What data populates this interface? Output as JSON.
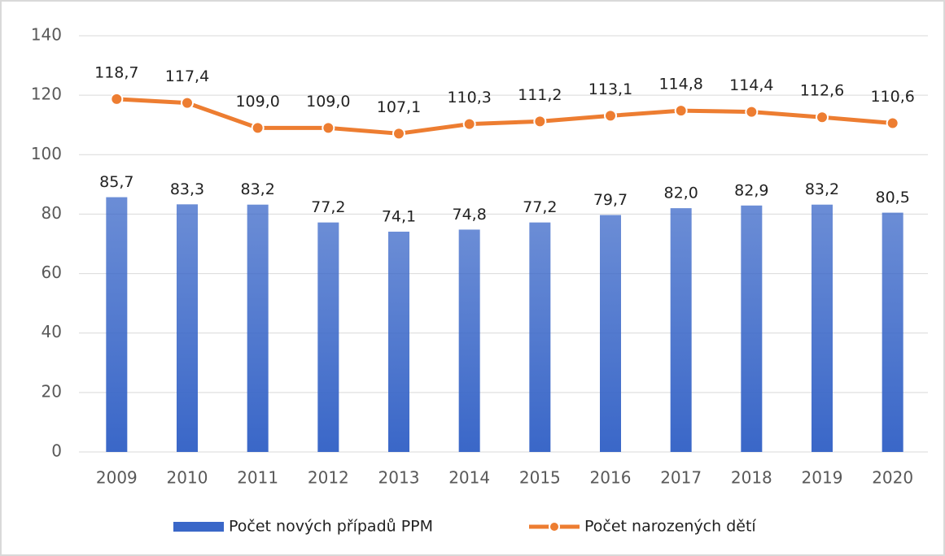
{
  "chart_data": {
    "type": "bar",
    "categories": [
      "2009",
      "2010",
      "2011",
      "2012",
      "2013",
      "2014",
      "2015",
      "2016",
      "2017",
      "2018",
      "2019",
      "2020"
    ],
    "series": [
      {
        "name": "Počet nových případů PPM",
        "type": "bar",
        "color": "#3a67c8",
        "values": [
          85.7,
          83.3,
          83.2,
          77.2,
          74.1,
          74.8,
          77.2,
          79.7,
          82.0,
          82.9,
          83.2,
          80.5
        ],
        "value_labels": [
          "85,7",
          "83,3",
          "83,2",
          "77,2",
          "74,1",
          "74,8",
          "77,2",
          "79,7",
          "82,0",
          "82,9",
          "83,2",
          "80,5"
        ]
      },
      {
        "name": "Počet narozených dětí",
        "type": "line",
        "color": "#ed7d31",
        "values": [
          118.7,
          117.4,
          109.0,
          109.0,
          107.1,
          110.3,
          111.2,
          113.1,
          114.8,
          114.4,
          112.6,
          110.6
        ],
        "value_labels": [
          "118,7",
          "117,4",
          "109,0",
          "109,0",
          "107,1",
          "110,3",
          "111,2",
          "113,1",
          "114,8",
          "114,4",
          "112,6",
          "110,6"
        ]
      }
    ],
    "ylim": [
      0,
      140
    ],
    "yticks": [
      0,
      20,
      40,
      60,
      80,
      100,
      120,
      140
    ],
    "grid": true,
    "legend": "bottom"
  }
}
